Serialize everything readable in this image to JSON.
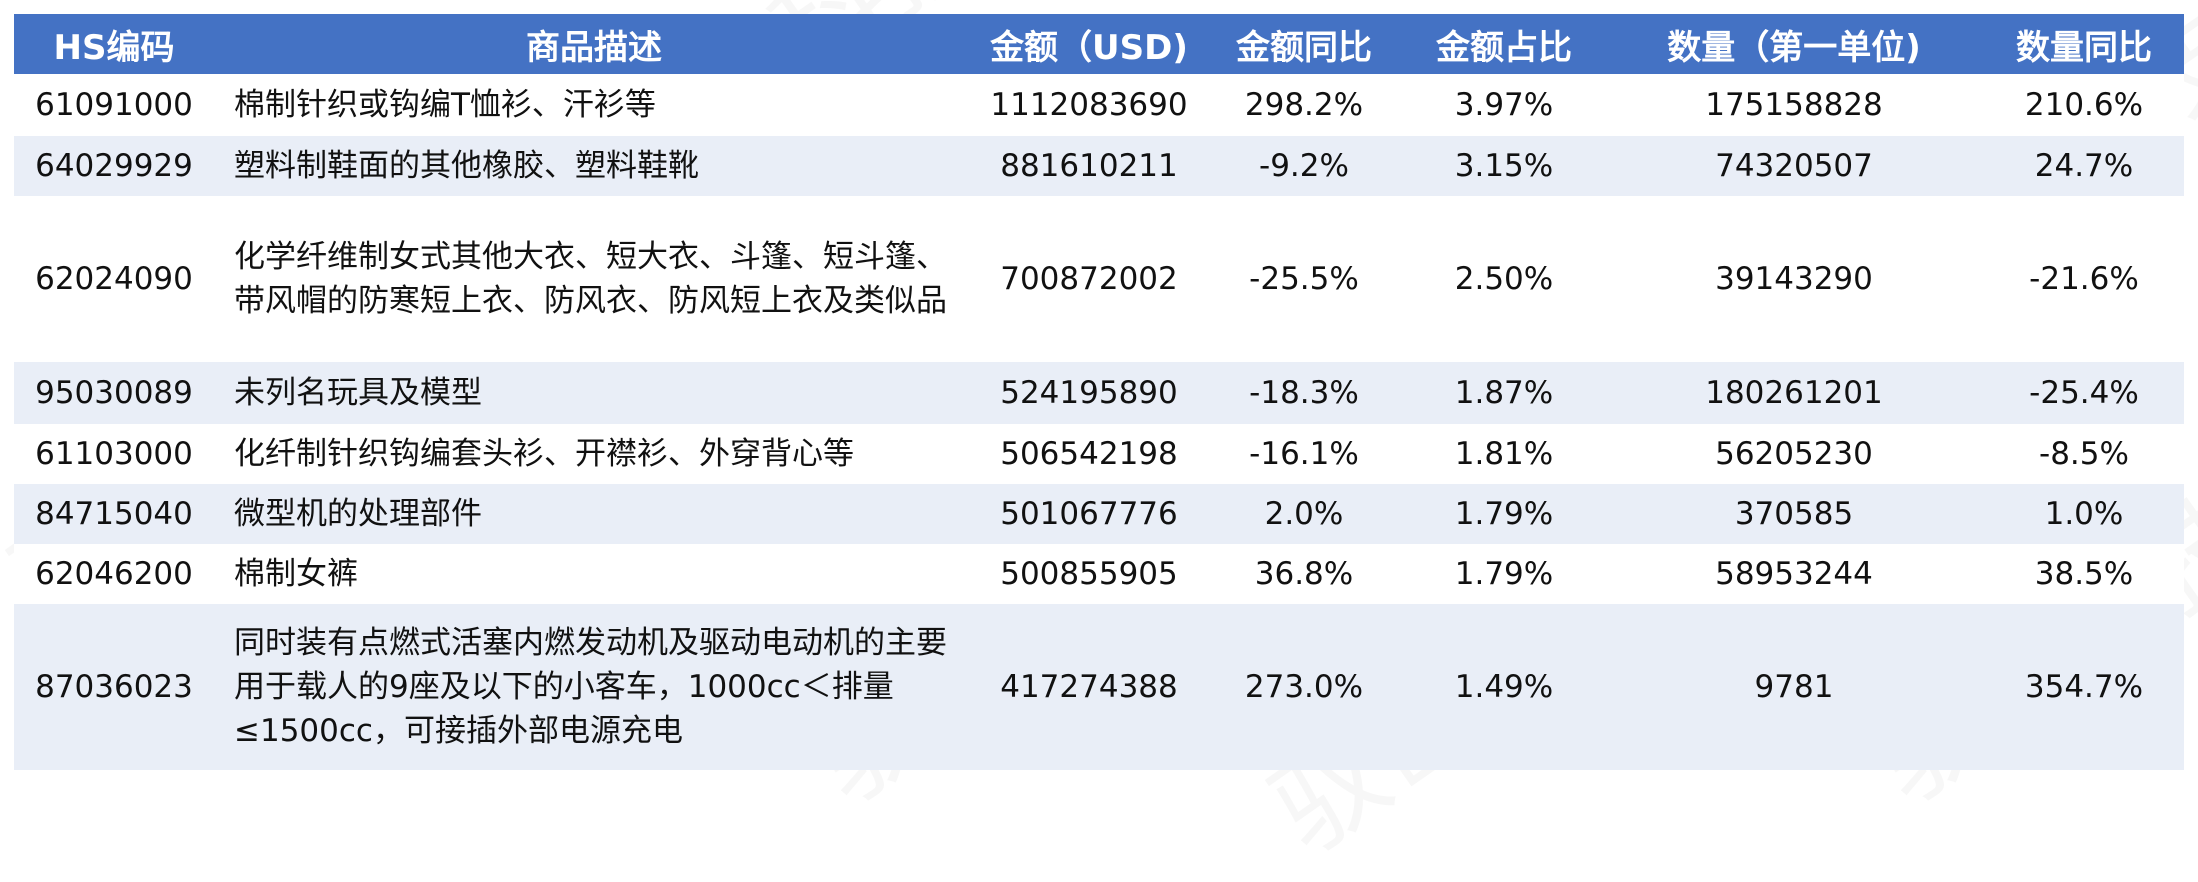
{
  "chart_data": {
    "type": "table",
    "columns": [
      "HS编码",
      "商品描述",
      "金额（USD)",
      "金额同比",
      "金额占比",
      "数量（第一单位)",
      "数量同比"
    ],
    "rows": [
      {
        "hs": "61091000",
        "desc": "棉制针织或钩编T恤衫、汗衫等",
        "amount": "1112083690",
        "amount_yoy": "298.2%",
        "share": "3.97%",
        "qty": "175158828",
        "qty_yoy": "210.6%"
      },
      {
        "hs": "64029929",
        "desc": "塑料制鞋面的其他橡胶、塑料鞋靴",
        "amount": "881610211",
        "amount_yoy": "-9.2%",
        "share": "3.15%",
        "qty": "74320507",
        "qty_yoy": "24.7%"
      },
      {
        "hs": "62024090",
        "desc": "化学纤维制女式其他大衣、短大衣、斗篷、短斗篷、带风帽的防寒短上衣、防风衣、防风短上衣及类似品",
        "amount": "700872002",
        "amount_yoy": "-25.5%",
        "share": "2.50%",
        "qty": "39143290",
        "qty_yoy": "-21.6%"
      },
      {
        "hs": "95030089",
        "desc": "未列名玩具及模型",
        "amount": "524195890",
        "amount_yoy": "-18.3%",
        "share": "1.87%",
        "qty": "180261201",
        "qty_yoy": "-25.4%"
      },
      {
        "hs": "61103000",
        "desc": "化纤制针织钩编套头衫、开襟衫、外穿背心等",
        "amount": "506542198",
        "amount_yoy": "-16.1%",
        "share": "1.81%",
        "qty": "56205230",
        "qty_yoy": "-8.5%"
      },
      {
        "hs": "84715040",
        "desc": "微型机的处理部件",
        "amount": "501067776",
        "amount_yoy": "2.0%",
        "share": "1.79%",
        "qty": "370585",
        "qty_yoy": "1.0%"
      },
      {
        "hs": "62046200",
        "desc": "棉制女裤",
        "amount": "500855905",
        "amount_yoy": "36.8%",
        "share": "1.79%",
        "qty": "58953244",
        "qty_yoy": "38.5%"
      },
      {
        "hs": "87036023",
        "desc": "同时装有点燃式活塞内燃发动机及驱动电动机的主要用于载人的9座及以下的小客车，1000cc＜排量≤1500cc，可接插外部电源充电",
        "amount": "417274388",
        "amount_yoy": "273.0%",
        "share": "1.49%",
        "qty": "9781",
        "qty_yoy": "354.7%"
      }
    ]
  },
  "watermark": "驭岳科技",
  "colors": {
    "header_bg": "#4472c4",
    "header_text": "#ffffff",
    "band": "#e9eef7"
  }
}
